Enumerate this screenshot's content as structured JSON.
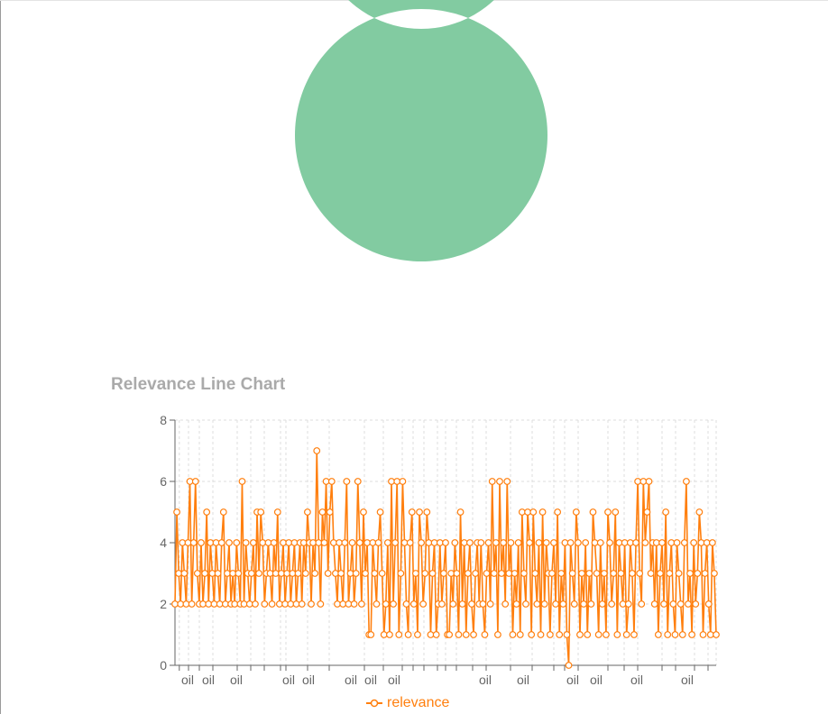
{
  "chart_data": [
    {
      "type": "pie",
      "title": "",
      "donut": true,
      "slices": [
        {
          "label": "",
          "value": 1
        }
      ],
      "colors": {
        "fill": "#82cba1"
      }
    },
    {
      "type": "line",
      "title": "Relevance Line Chart",
      "xlabel": "",
      "ylabel": "",
      "ylim": [
        0,
        8
      ],
      "yticks": [
        0,
        2,
        4,
        6,
        8
      ],
      "grid": true,
      "legend_position": "bottom",
      "x_tick_labels": [
        "oil",
        "oil",
        "oil",
        "oil",
        "oil",
        "oil",
        "oil",
        "oil",
        "oil",
        "oil",
        "oil",
        "oil",
        "oil",
        "oil"
      ],
      "series": [
        {
          "name": "relevance",
          "color": "#ff7f0e",
          "values": [
            2,
            5,
            3,
            2,
            4,
            3,
            2,
            4,
            6,
            2,
            4,
            6,
            3,
            2,
            4,
            2,
            3,
            5,
            2,
            4,
            3,
            2,
            4,
            3,
            2,
            4,
            5,
            2,
            3,
            4,
            2,
            3,
            2,
            4,
            3,
            2,
            6,
            2,
            4,
            3,
            2,
            3,
            4,
            2,
            5,
            3,
            5,
            4,
            2,
            3,
            4,
            3,
            2,
            4,
            3,
            5,
            2,
            3,
            4,
            2,
            3,
            4,
            2,
            3,
            4,
            2,
            3,
            4,
            2,
            4,
            3,
            5,
            4,
            2,
            4,
            3,
            7,
            4,
            2,
            5,
            4,
            6,
            3,
            5,
            6,
            4,
            3,
            2,
            4,
            3,
            2,
            4,
            6,
            2,
            3,
            4,
            2,
            3,
            6,
            4,
            2,
            5,
            3,
            4,
            1,
            1,
            4,
            3,
            2,
            4,
            5,
            3,
            1,
            2,
            4,
            1,
            6,
            2,
            4,
            6,
            1,
            3,
            6,
            4,
            2,
            1,
            4,
            5,
            2,
            3,
            1,
            5,
            4,
            2,
            3,
            5,
            4,
            1,
            3,
            4,
            1,
            2,
            4,
            2,
            3,
            4,
            1,
            1,
            3,
            2,
            4,
            3,
            1,
            5,
            2,
            4,
            1,
            3,
            4,
            2,
            1,
            3,
            4,
            2,
            4,
            2,
            1,
            3,
            4,
            2,
            6,
            3,
            4,
            1,
            6,
            3,
            4,
            2,
            6,
            3,
            4,
            1,
            3,
            2,
            4,
            1,
            5,
            3,
            2,
            5,
            4,
            1,
            5,
            3,
            2,
            4,
            1,
            5,
            2,
            4,
            3,
            1,
            3,
            4,
            2,
            5,
            1,
            3,
            2,
            4,
            1,
            0,
            4,
            3,
            2,
            5,
            4,
            1,
            3,
            2,
            4,
            1,
            3,
            2,
            5,
            4,
            3,
            1,
            4,
            2,
            3,
            1,
            5,
            4,
            2,
            3,
            5,
            1,
            4,
            3,
            2,
            4,
            1,
            2,
            4,
            3,
            1,
            4,
            6,
            3,
            2,
            6,
            4,
            5,
            6,
            3,
            4,
            2,
            4,
            1,
            3,
            4,
            2,
            5,
            1,
            3,
            4,
            2,
            1,
            4,
            3,
            2,
            1,
            4,
            6,
            2,
            3,
            1,
            4,
            2,
            3,
            5,
            4,
            1,
            3,
            4,
            2,
            1,
            4,
            3,
            1
          ]
        }
      ]
    }
  ]
}
